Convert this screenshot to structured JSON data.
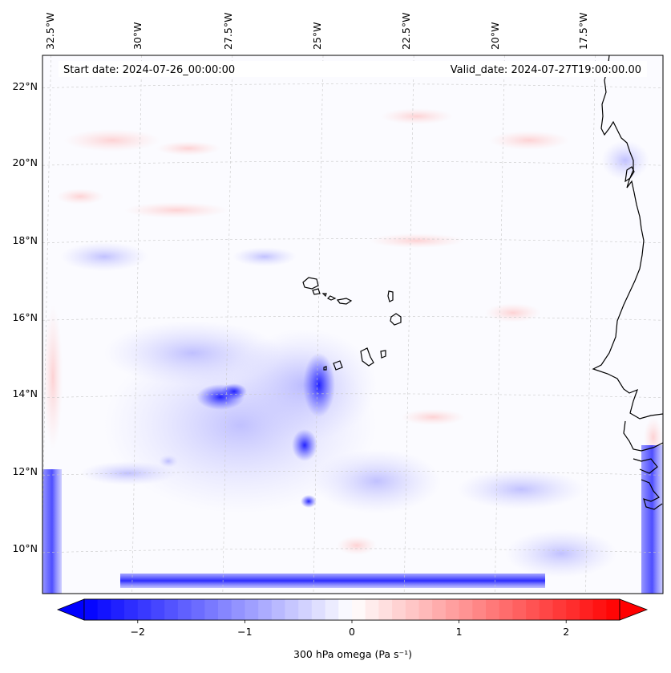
{
  "map": {
    "title_left": "Start date: 2024-07-26_00:00:00",
    "title_right": "Valid_date: 2024-07-27T19:00:00.00",
    "lon_labels": [
      "32.5°W",
      "30°W",
      "27.5°W",
      "25°W",
      "22.5°W",
      "20°W",
      "17.5°W"
    ],
    "lat_labels": [
      "22°N",
      "20°N",
      "18°N",
      "16°N",
      "14°N",
      "12°N",
      "10°N"
    ],
    "lon_values": [
      -32.5,
      -30,
      -27.5,
      -25,
      -22.5,
      -20,
      -17.5
    ],
    "lat_values": [
      22,
      20,
      18,
      16,
      14,
      12,
      10
    ],
    "extent": {
      "lon_min": -32.6,
      "lon_max": -15.5,
      "lat_min": 8.9,
      "lat_max": 22.8
    },
    "coastline_color": "#000000",
    "gridline_color": "#c8c8c8"
  },
  "colorbar": {
    "label": "300 hPa omega (Pa s⁻¹)",
    "tick_labels": [
      "−2",
      "−1",
      "0",
      "1",
      "2"
    ],
    "tick_values": [
      -2,
      -1,
      0,
      1,
      2
    ],
    "vmin": -2.5,
    "vmax": 2.5,
    "cmap": "bwr",
    "low_color": "#0000ff",
    "mid_color": "#ffffff",
    "high_color": "#ff0000"
  }
}
